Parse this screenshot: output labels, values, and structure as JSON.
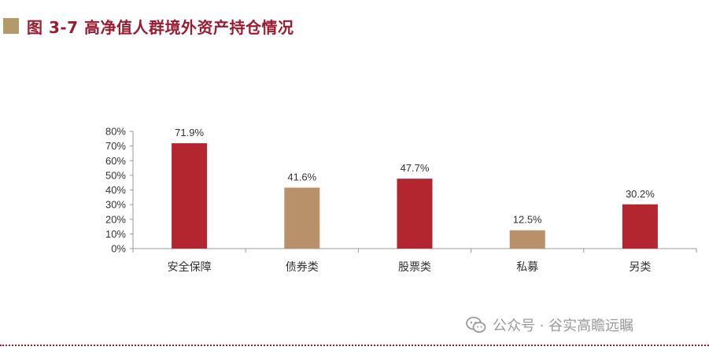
{
  "title": "图 3-7  高净值人群境外资产持仓情况",
  "watermark": "公众号 · 谷实高瞻远瞩",
  "colors": {
    "red": "#b3252f",
    "tan": "#b8916a",
    "title": "#9b1b30",
    "marker": "#b29a6a",
    "axis": "#999999"
  },
  "chart_data": {
    "type": "bar",
    "title": "",
    "xlabel": "",
    "ylabel": "",
    "categories": [
      "安全保障",
      "债券类",
      "股票类",
      "私募",
      "另类"
    ],
    "values": [
      71.9,
      41.6,
      47.7,
      12.5,
      30.2
    ],
    "value_labels": [
      "71.9%",
      "41.6%",
      "47.7%",
      "12.5%",
      "30.2%"
    ],
    "bar_colors": [
      "#b3252f",
      "#b8916a",
      "#b3252f",
      "#b8916a",
      "#b3252f"
    ],
    "ylim": [
      0,
      80
    ],
    "yticks": [
      0,
      10,
      20,
      30,
      40,
      50,
      60,
      70,
      80
    ],
    "ytick_labels": [
      "0%",
      "10%",
      "20%",
      "30%",
      "40%",
      "50%",
      "60%",
      "70%",
      "80%"
    ],
    "grid": false,
    "legend": "none"
  }
}
